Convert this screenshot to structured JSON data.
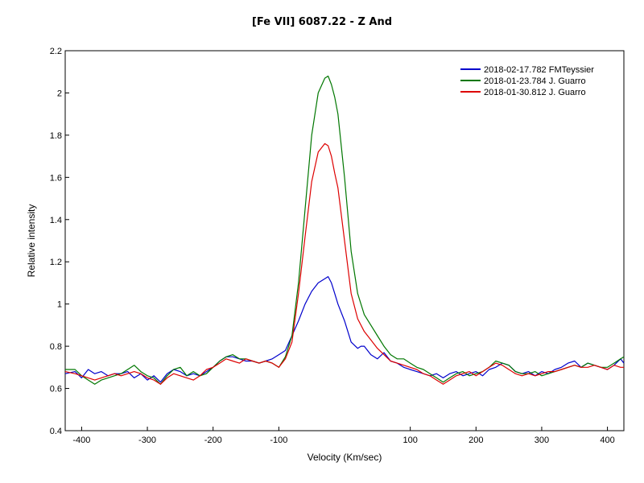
{
  "chart_data": {
    "type": "line",
    "title": "[Fe VII] 6087.22 - Z And",
    "xlabel": "Velocity (Km/sec)",
    "ylabel": "Relative intensity",
    "xlim": [
      -425,
      425
    ],
    "ylim": [
      0.4,
      2.2
    ],
    "xticks": [
      -400,
      -300,
      -200,
      -100,
      100,
      200,
      300,
      400
    ],
    "yticks": [
      0.4,
      0.6,
      0.8,
      1,
      1.2,
      1.4,
      1.6,
      1.8,
      2,
      2.2
    ],
    "grid": false,
    "legend_position": "top-right",
    "series": [
      {
        "name": "2018-02-17.782  FMTeyssier",
        "color": "#0000cc",
        "x": [
          -425,
          -410,
          -400,
          -390,
          -380,
          -370,
          -360,
          -350,
          -340,
          -330,
          -320,
          -310,
          -300,
          -290,
          -280,
          -270,
          -260,
          -250,
          -240,
          -230,
          -220,
          -210,
          -200,
          -190,
          -180,
          -170,
          -160,
          -150,
          -140,
          -130,
          -120,
          -110,
          -100,
          -90,
          -80,
          -70,
          -60,
          -50,
          -40,
          -30,
          -25,
          -20,
          -15,
          -10,
          0,
          10,
          20,
          25,
          30,
          40,
          50,
          60,
          70,
          80,
          90,
          100,
          110,
          120,
          130,
          140,
          150,
          160,
          170,
          180,
          190,
          200,
          210,
          220,
          230,
          240,
          250,
          260,
          270,
          280,
          290,
          300,
          310,
          320,
          330,
          340,
          350,
          360,
          370,
          380,
          390,
          400,
          410,
          420,
          425
        ],
        "y": [
          0.67,
          0.68,
          0.65,
          0.69,
          0.67,
          0.68,
          0.66,
          0.67,
          0.67,
          0.68,
          0.65,
          0.67,
          0.64,
          0.66,
          0.63,
          0.67,
          0.69,
          0.68,
          0.66,
          0.67,
          0.66,
          0.68,
          0.7,
          0.73,
          0.75,
          0.75,
          0.74,
          0.73,
          0.73,
          0.72,
          0.73,
          0.74,
          0.76,
          0.78,
          0.85,
          0.92,
          1.0,
          1.06,
          1.1,
          1.12,
          1.13,
          1.1,
          1.05,
          1.0,
          0.92,
          0.82,
          0.79,
          0.8,
          0.8,
          0.76,
          0.74,
          0.77,
          0.73,
          0.72,
          0.7,
          0.69,
          0.68,
          0.67,
          0.66,
          0.67,
          0.65,
          0.67,
          0.68,
          0.66,
          0.67,
          0.68,
          0.66,
          0.69,
          0.7,
          0.72,
          0.71,
          0.68,
          0.67,
          0.68,
          0.66,
          0.68,
          0.67,
          0.69,
          0.7,
          0.72,
          0.73,
          0.7,
          0.72,
          0.71,
          0.7,
          0.69,
          0.71,
          0.74,
          0.72
        ]
      },
      {
        "name": "2018-01-23.784  J. Guarro",
        "color": "#007700",
        "x": [
          -425,
          -410,
          -400,
          -390,
          -380,
          -370,
          -360,
          -350,
          -340,
          -330,
          -320,
          -310,
          -300,
          -290,
          -280,
          -270,
          -260,
          -250,
          -240,
          -230,
          -220,
          -210,
          -200,
          -190,
          -180,
          -170,
          -160,
          -150,
          -140,
          -130,
          -120,
          -110,
          -100,
          -90,
          -80,
          -70,
          -60,
          -50,
          -40,
          -30,
          -25,
          -20,
          -15,
          -10,
          0,
          10,
          20,
          30,
          40,
          50,
          60,
          70,
          80,
          90,
          100,
          110,
          120,
          130,
          140,
          150,
          160,
          170,
          180,
          190,
          200,
          210,
          220,
          230,
          240,
          250,
          260,
          270,
          280,
          290,
          300,
          310,
          320,
          330,
          340,
          350,
          360,
          370,
          380,
          390,
          400,
          410,
          420,
          425
        ],
        "y": [
          0.69,
          0.69,
          0.66,
          0.64,
          0.62,
          0.64,
          0.65,
          0.66,
          0.67,
          0.69,
          0.71,
          0.68,
          0.66,
          0.65,
          0.62,
          0.66,
          0.69,
          0.7,
          0.66,
          0.68,
          0.66,
          0.67,
          0.7,
          0.73,
          0.75,
          0.76,
          0.74,
          0.74,
          0.73,
          0.72,
          0.73,
          0.72,
          0.7,
          0.75,
          0.85,
          1.1,
          1.45,
          1.8,
          2.0,
          2.07,
          2.08,
          2.04,
          1.98,
          1.9,
          1.6,
          1.25,
          1.05,
          0.95,
          0.9,
          0.85,
          0.8,
          0.76,
          0.74,
          0.74,
          0.72,
          0.7,
          0.69,
          0.67,
          0.65,
          0.63,
          0.65,
          0.67,
          0.68,
          0.66,
          0.67,
          0.68,
          0.7,
          0.73,
          0.72,
          0.71,
          0.68,
          0.67,
          0.67,
          0.68,
          0.66,
          0.67,
          0.68,
          0.69,
          0.7,
          0.71,
          0.7,
          0.72,
          0.71,
          0.7,
          0.7,
          0.72,
          0.74,
          0.75
        ]
      },
      {
        "name": "2018-01-30.812  J. Guarro",
        "color": "#dd0000",
        "x": [
          -425,
          -410,
          -400,
          -390,
          -380,
          -370,
          -360,
          -350,
          -340,
          -330,
          -320,
          -310,
          -300,
          -290,
          -280,
          -270,
          -260,
          -250,
          -240,
          -230,
          -220,
          -210,
          -200,
          -190,
          -180,
          -170,
          -160,
          -150,
          -140,
          -130,
          -120,
          -110,
          -100,
          -90,
          -80,
          -70,
          -60,
          -50,
          -40,
          -30,
          -25,
          -20,
          -15,
          -10,
          0,
          10,
          20,
          30,
          40,
          50,
          60,
          70,
          80,
          90,
          100,
          110,
          120,
          130,
          140,
          150,
          160,
          170,
          180,
          190,
          200,
          210,
          220,
          230,
          240,
          250,
          260,
          270,
          280,
          290,
          300,
          310,
          320,
          330,
          340,
          350,
          360,
          370,
          380,
          390,
          400,
          410,
          420,
          425
        ],
        "y": [
          0.68,
          0.67,
          0.66,
          0.65,
          0.64,
          0.65,
          0.66,
          0.67,
          0.66,
          0.67,
          0.68,
          0.67,
          0.65,
          0.64,
          0.62,
          0.65,
          0.67,
          0.66,
          0.65,
          0.64,
          0.66,
          0.69,
          0.7,
          0.72,
          0.74,
          0.73,
          0.72,
          0.74,
          0.73,
          0.72,
          0.73,
          0.72,
          0.7,
          0.74,
          0.82,
          1.05,
          1.32,
          1.58,
          1.72,
          1.76,
          1.75,
          1.7,
          1.62,
          1.55,
          1.3,
          1.05,
          0.93,
          0.87,
          0.83,
          0.79,
          0.76,
          0.73,
          0.72,
          0.71,
          0.7,
          0.69,
          0.67,
          0.66,
          0.64,
          0.62,
          0.64,
          0.66,
          0.67,
          0.68,
          0.66,
          0.68,
          0.7,
          0.72,
          0.71,
          0.69,
          0.67,
          0.66,
          0.67,
          0.66,
          0.67,
          0.68,
          0.68,
          0.69,
          0.7,
          0.71,
          0.7,
          0.7,
          0.71,
          0.7,
          0.69,
          0.71,
          0.7,
          0.7
        ]
      }
    ]
  }
}
